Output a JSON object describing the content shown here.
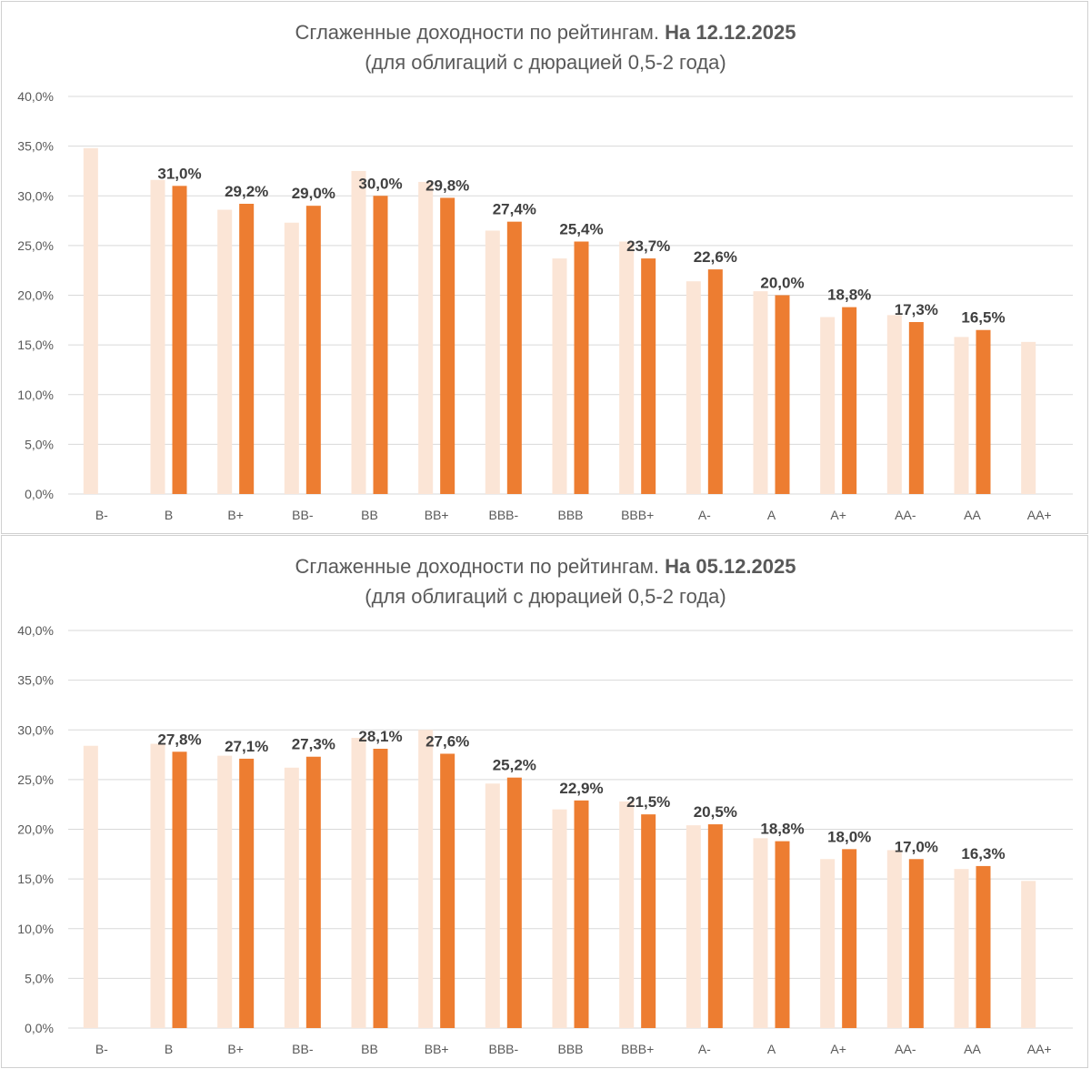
{
  "colors": {
    "prev_series": "#FBE5D6",
    "curr_series": "#ED7D31",
    "grid": "#D9D9D9",
    "text": "#595959",
    "label": "#404040"
  },
  "chart_data": [
    {
      "type": "bar",
      "title": "Сглаженные доходности по рейтингам.",
      "title_date": "На 12.12.2025",
      "subtitle": "(для облигаций с дюрацией 0,5-2 года)",
      "categories": [
        "B-",
        "B",
        "B+",
        "BB-",
        "BB",
        "BB+",
        "BBB-",
        "BBB",
        "BBB+",
        "A-",
        "A",
        "A+",
        "AA-",
        "AA",
        "AA+"
      ],
      "yticks": [
        "0,0%",
        "5,0%",
        "10,0%",
        "15,0%",
        "20,0%",
        "25,0%",
        "30,0%",
        "35,0%",
        "40,0%"
      ],
      "ylim": [
        0,
        40
      ],
      "series": [
        {
          "name": "previous",
          "values": [
            34.8,
            31.6,
            28.6,
            27.3,
            32.5,
            31.4,
            26.5,
            23.7,
            25.4,
            21.4,
            20.4,
            17.8,
            18.0,
            15.8,
            15.3
          ]
        },
        {
          "name": "current",
          "values": [
            null,
            31.0,
            29.2,
            29.0,
            30.0,
            29.8,
            27.4,
            25.4,
            23.7,
            22.6,
            20.0,
            18.8,
            17.3,
            16.5,
            null
          ]
        }
      ],
      "data_labels": [
        "",
        "31,0%",
        "29,2%",
        "29,0%",
        "30,0%",
        "29,8%",
        "27,4%",
        "25,4%",
        "23,7%",
        "22,6%",
        "20,0%",
        "18,8%",
        "17,3%",
        "16,5%",
        ""
      ]
    },
    {
      "type": "bar",
      "title": "Сглаженные доходности по рейтингам.",
      "title_date": "На 05.12.2025",
      "subtitle": "(для облигаций с дюрацией 0,5-2 года)",
      "categories": [
        "B-",
        "B",
        "B+",
        "BB-",
        "BB",
        "BB+",
        "BBB-",
        "BBB",
        "BBB+",
        "A-",
        "A",
        "A+",
        "AA-",
        "AA",
        "AA+"
      ],
      "yticks": [
        "0,0%",
        "5,0%",
        "10,0%",
        "15,0%",
        "20,0%",
        "25,0%",
        "30,0%",
        "35,0%",
        "40,0%"
      ],
      "ylim": [
        0,
        40
      ],
      "series": [
        {
          "name": "previous",
          "values": [
            28.4,
            28.6,
            27.4,
            26.2,
            29.2,
            30.0,
            24.6,
            22.0,
            22.8,
            20.4,
            19.1,
            17.0,
            17.9,
            16.0,
            14.8
          ]
        },
        {
          "name": "current",
          "values": [
            null,
            27.8,
            27.1,
            27.3,
            28.1,
            27.6,
            25.2,
            22.9,
            21.5,
            20.5,
            18.8,
            18.0,
            17.0,
            16.3,
            null
          ]
        }
      ],
      "data_labels": [
        "",
        "27,8%",
        "27,1%",
        "27,3%",
        "28,1%",
        "27,6%",
        "25,2%",
        "22,9%",
        "21,5%",
        "20,5%",
        "18,8%",
        "18,0%",
        "17,0%",
        "16,3%",
        ""
      ]
    }
  ]
}
